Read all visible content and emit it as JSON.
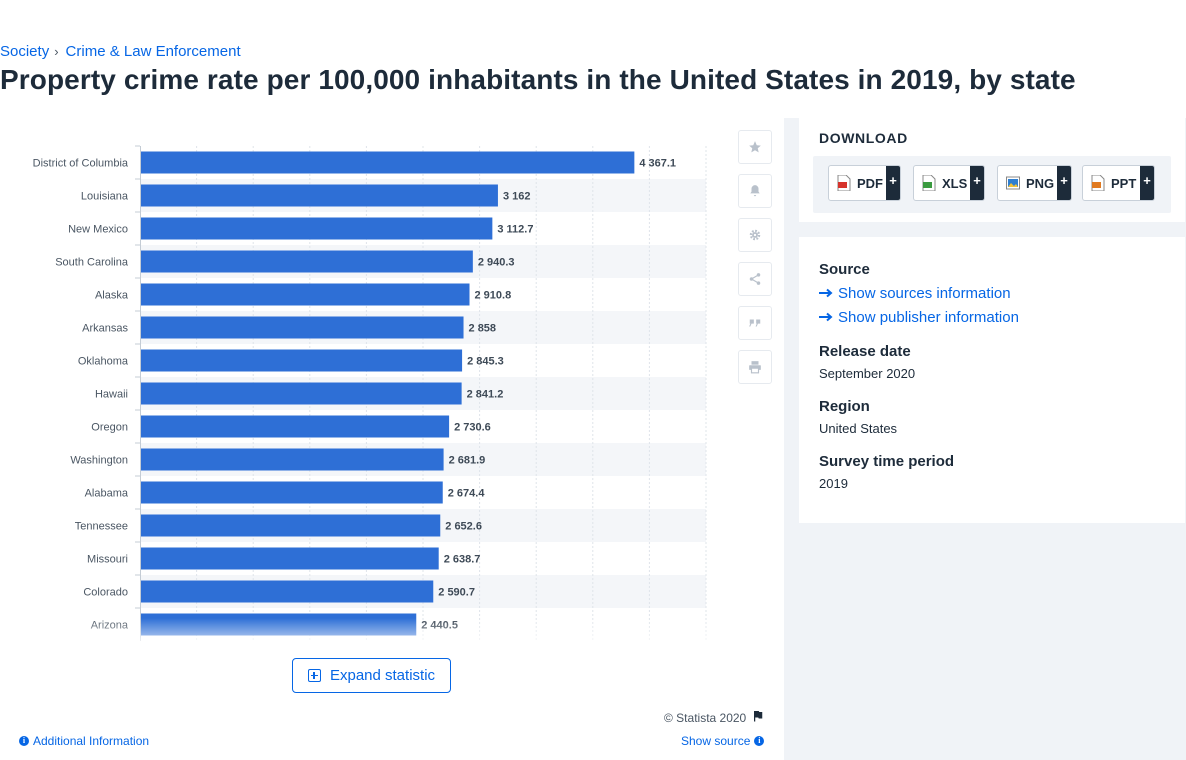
{
  "breadcrumb": {
    "items": [
      "Society",
      "Crime & Law Enforcement"
    ],
    "separator": "›"
  },
  "page": {
    "title": "Property crime rate per 100,000 inhabitants in the United States in 2019, by state"
  },
  "chart_data": {
    "type": "bar",
    "orientation": "horizontal",
    "categories": [
      "District of Columbia",
      "Louisiana",
      "New Mexico",
      "South Carolina",
      "Alaska",
      "Arkansas",
      "Oklahoma",
      "Hawaii",
      "Oregon",
      "Washington",
      "Alabama",
      "Tennessee",
      "Missouri",
      "Colorado",
      "Arizona"
    ],
    "values": [
      4367.1,
      3162,
      3112.7,
      2940.3,
      2910.8,
      2858,
      2845.3,
      2841.2,
      2730.6,
      2681.9,
      2674.4,
      2652.6,
      2638.7,
      2590.7,
      2440.5
    ],
    "value_labels": [
      "4 367.1",
      "3 162",
      "3 112.7",
      "2 940.3",
      "2 910.8",
      "2 858",
      "2 845.3",
      "2 841.2",
      "2 730.6",
      "2 681.9",
      "2 674.4",
      "2 652.6",
      "2 638.7",
      "2 590.7",
      "2 440.5"
    ],
    "xlim": [
      0,
      5000
    ],
    "grid": true,
    "bar_color": "#2e6fd6"
  },
  "toolbar": {
    "icons": [
      "star-icon",
      "bell-icon",
      "gear-icon",
      "share-icon",
      "quote-icon",
      "print-icon"
    ]
  },
  "expand": {
    "label": "Expand statistic"
  },
  "footer": {
    "copyright": "© Statista 2020",
    "additional_info": "Additional Information",
    "show_source": "Show source"
  },
  "download": {
    "title": "DOWNLOAD",
    "buttons": [
      {
        "label": "PDF",
        "plus": "+",
        "icon": "pdf-icon",
        "color": "#d6332b"
      },
      {
        "label": "XLS",
        "plus": "+",
        "icon": "xls-icon",
        "color": "#3a9a3f"
      },
      {
        "label": "PNG",
        "plus": "+",
        "icon": "png-icon",
        "color": "#2f7fd0"
      },
      {
        "label": "PPT",
        "plus": "+",
        "icon": "ppt-icon",
        "color": "#e07a20"
      }
    ]
  },
  "source_panel": {
    "source_heading": "Source",
    "show_sources": "Show sources information",
    "show_publisher": "Show publisher information",
    "release_heading": "Release date",
    "release_value": "September 2020",
    "region_heading": "Region",
    "region_value": "United States",
    "survey_heading": "Survey time period",
    "survey_value": "2019"
  },
  "colors": {
    "accent": "#0666e5",
    "text": "#1d2b3a",
    "panel_bg": "#f0f3f7"
  }
}
